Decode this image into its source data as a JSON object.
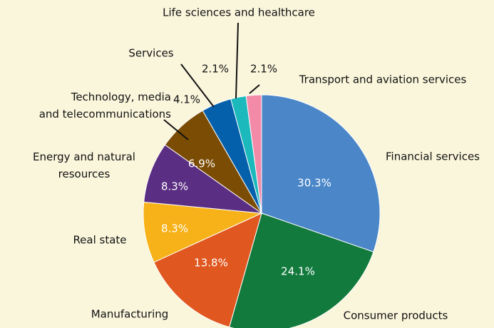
{
  "chart_data": {
    "type": "pie",
    "categories": [
      "Financial services",
      "Consumer products",
      "Manufacturing",
      "Real state",
      "Energy and natural\nresources",
      "Technology, media\nand telecommunications",
      "Services",
      "Life sciences and healthcare",
      "Transport and aviation services"
    ],
    "values": [
      30.3,
      24.1,
      13.8,
      8.3,
      8.3,
      6.9,
      4.1,
      2.1,
      2.1
    ],
    "value_labels": [
      "30.3%",
      "24.1%",
      "13.8%",
      "8.3%",
      "8.3%",
      "6.9%",
      "4.1%",
      "2.1%",
      "2.1%"
    ],
    "colors": [
      "#4a86c8",
      "#127a3c",
      "#e0571f",
      "#f7b219",
      "#5a2e82",
      "#7b4c04",
      "#0560ab",
      "#1bb8bc",
      "#f28aa8"
    ]
  }
}
